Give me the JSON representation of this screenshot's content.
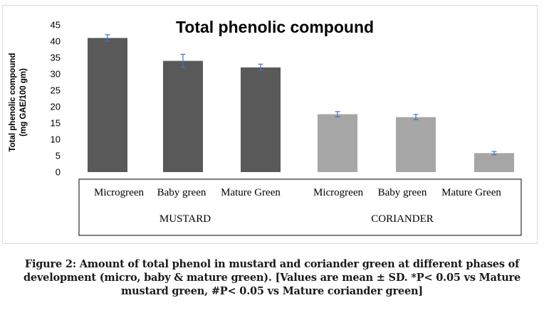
{
  "chart_data": {
    "type": "bar",
    "title": "Total phenolic compound",
    "ylabel_lines": [
      "Total phenolic compound",
      "(mg GAE/100 gm)"
    ],
    "xlabel": "",
    "ylim": [
      0,
      45
    ],
    "yticks": [
      0,
      5,
      10,
      15,
      20,
      25,
      30,
      35,
      40,
      45
    ],
    "grid": false,
    "groups": [
      {
        "name": "MUSTARD",
        "color": "#595959",
        "categories": [
          "Microgreen",
          "Baby green",
          "Mature Green"
        ],
        "values": [
          41,
          34,
          32
        ],
        "errors": [
          1,
          2,
          1
        ]
      },
      {
        "name": "CORIANDER",
        "color": "#a6a6a6",
        "categories": [
          "Microgreen",
          "Baby green",
          "Mature Green"
        ],
        "values": [
          17.7,
          16.8,
          5.8
        ],
        "errors": [
          0.8,
          0.8,
          0.5
        ]
      }
    ],
    "error_bar_color": "#4472c4"
  },
  "caption": {
    "line1": "Figure 2: Amount of total phenol in mustard and coriander green at different phases of",
    "line2": "development (micro, baby & mature green). [Values are mean ± SD. *P< 0.05 vs Mature",
    "line3": "mustard green, #P< 0.05 vs Mature coriander green]"
  }
}
